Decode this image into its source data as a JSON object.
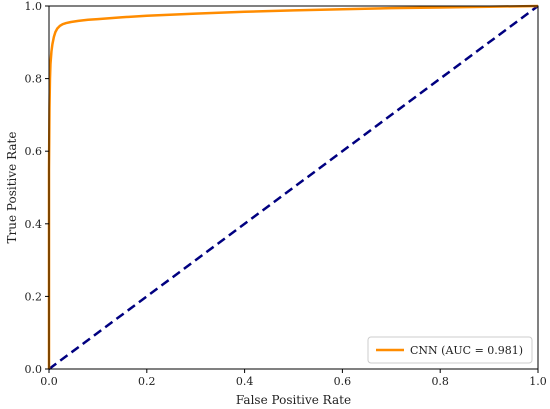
{
  "chart_data": {
    "type": "line",
    "title": "",
    "xlabel": "False Positive Rate",
    "ylabel": "True Positive Rate",
    "xlim": [
      0.0,
      1.0
    ],
    "ylim": [
      0.0,
      1.0
    ],
    "xticks": [
      "0.0",
      "0.2",
      "0.4",
      "0.6",
      "0.8",
      "1.0"
    ],
    "yticks": [
      "0.0",
      "0.2",
      "0.4",
      "0.6",
      "0.8",
      "1.0"
    ],
    "grid": false,
    "legend_position": "bottom-right",
    "series": [
      {
        "name": "CNN (AUC = 0.981)",
        "color": "#ff8c00",
        "style": "solid",
        "x": [
          0.0,
          0.0,
          0.001,
          0.002,
          0.003,
          0.005,
          0.007,
          0.01,
          0.013,
          0.017,
          0.022,
          0.028,
          0.035,
          0.045,
          0.06,
          0.08,
          0.1,
          0.15,
          0.2,
          0.3,
          0.4,
          0.5,
          0.6,
          0.7,
          0.8,
          0.9,
          1.0
        ],
        "y": [
          0.0,
          0.55,
          0.72,
          0.8,
          0.84,
          0.875,
          0.895,
          0.915,
          0.928,
          0.938,
          0.945,
          0.95,
          0.953,
          0.956,
          0.959,
          0.962,
          0.964,
          0.969,
          0.973,
          0.979,
          0.984,
          0.988,
          0.991,
          0.994,
          0.996,
          0.998,
          1.0
        ]
      },
      {
        "name": "",
        "color": "#000080",
        "style": "dashed",
        "x": [
          0.0,
          1.0
        ],
        "y": [
          0.0,
          1.0
        ]
      }
    ]
  }
}
